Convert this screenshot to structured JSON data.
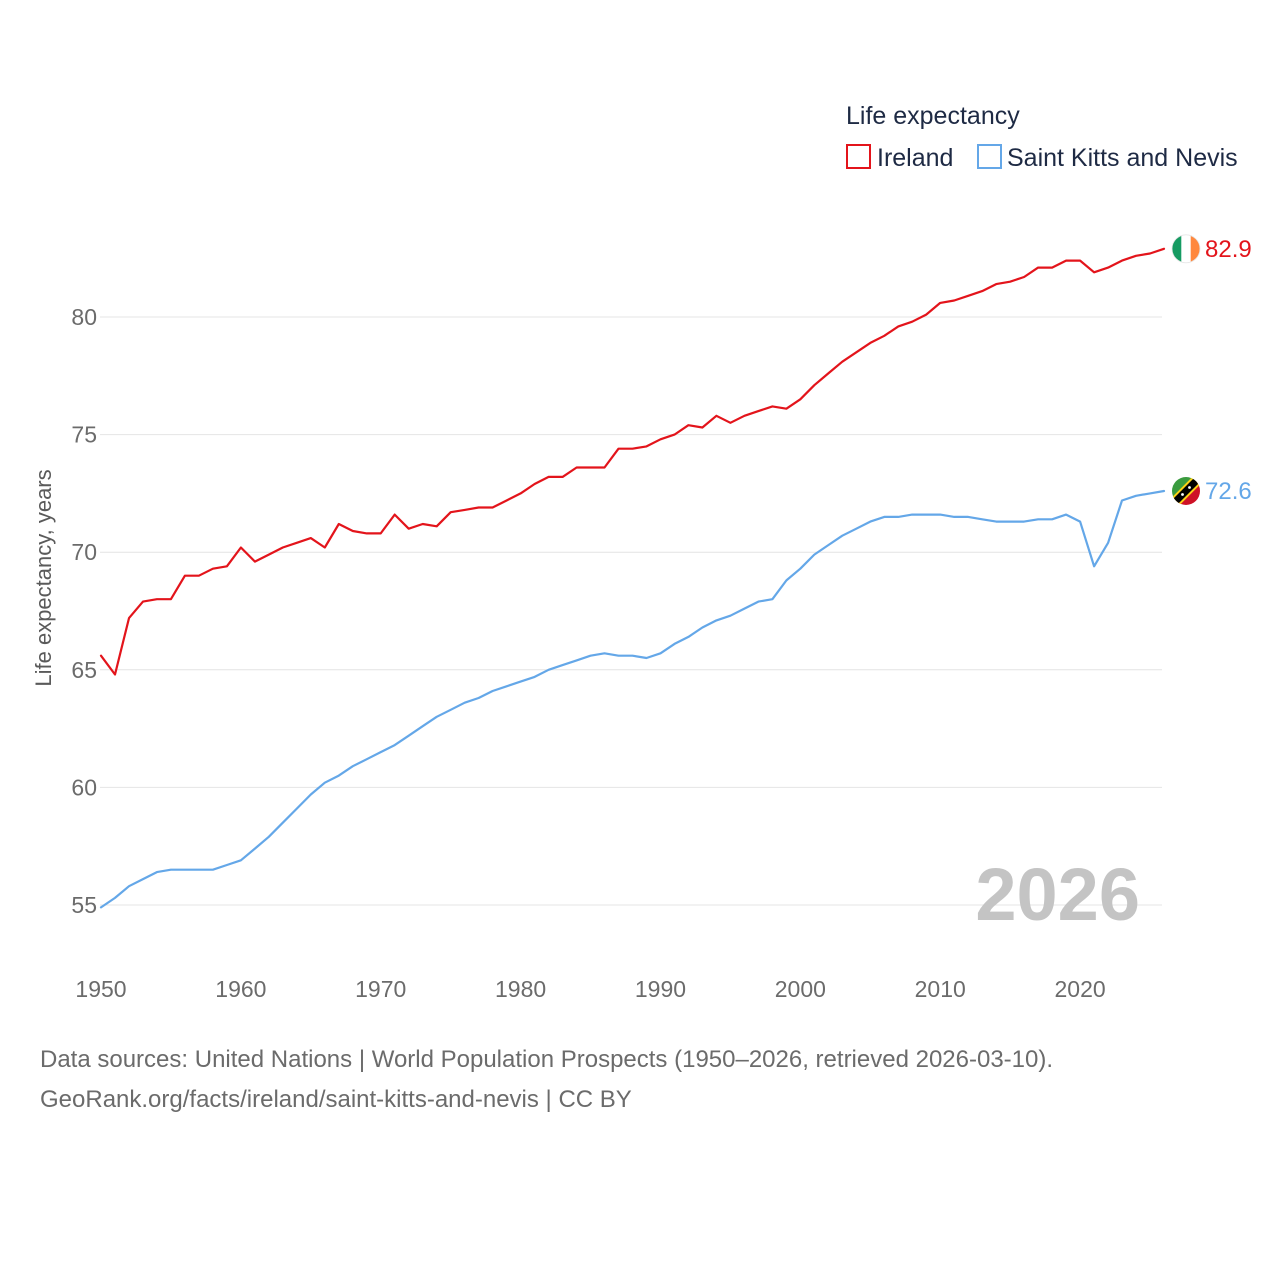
{
  "chart_data": {
    "type": "line",
    "title": "",
    "legend_title": "Life expectancy",
    "ylabel": "Life expectancy, years",
    "xlabel": "",
    "xlim": [
      1950,
      2026
    ],
    "ylim": [
      54,
      84
    ],
    "x_ticks": [
      1950,
      1960,
      1970,
      1980,
      1990,
      2000,
      2010,
      2020
    ],
    "y_ticks": [
      55,
      60,
      65,
      70,
      75,
      80
    ],
    "year_label": "2026",
    "x": [
      1950,
      1951,
      1952,
      1953,
      1954,
      1955,
      1956,
      1957,
      1958,
      1959,
      1960,
      1961,
      1962,
      1963,
      1964,
      1965,
      1966,
      1967,
      1968,
      1969,
      1970,
      1971,
      1972,
      1973,
      1974,
      1975,
      1976,
      1977,
      1978,
      1979,
      1980,
      1981,
      1982,
      1983,
      1984,
      1985,
      1986,
      1987,
      1988,
      1989,
      1990,
      1991,
      1992,
      1993,
      1994,
      1995,
      1996,
      1997,
      1998,
      1999,
      2000,
      2001,
      2002,
      2003,
      2004,
      2005,
      2006,
      2007,
      2008,
      2009,
      2010,
      2011,
      2012,
      2013,
      2014,
      2015,
      2016,
      2017,
      2018,
      2019,
      2020,
      2021,
      2022,
      2023,
      2024,
      2025,
      2026
    ],
    "series": [
      {
        "name": "Ireland",
        "color": "#e3141b",
        "end_label": "82.9",
        "values": [
          65.6,
          64.8,
          67.2,
          67.9,
          68.0,
          68.0,
          69.0,
          69.0,
          69.3,
          69.4,
          70.2,
          69.6,
          69.9,
          70.2,
          70.4,
          70.6,
          70.2,
          71.2,
          70.9,
          70.8,
          70.8,
          71.6,
          71.0,
          71.2,
          71.1,
          71.7,
          71.8,
          71.9,
          71.9,
          72.2,
          72.5,
          72.9,
          73.2,
          73.2,
          73.6,
          73.6,
          73.6,
          74.4,
          74.4,
          74.5,
          74.8,
          75.0,
          75.4,
          75.3,
          75.8,
          75.5,
          75.8,
          76.0,
          76.2,
          76.1,
          76.5,
          77.1,
          77.6,
          78.1,
          78.5,
          78.9,
          79.2,
          79.6,
          79.8,
          80.1,
          80.6,
          80.7,
          80.9,
          81.1,
          81.4,
          81.5,
          81.7,
          82.1,
          82.1,
          82.4,
          82.4,
          81.9,
          82.1,
          82.4,
          82.6,
          82.7,
          82.9
        ]
      },
      {
        "name": "Saint Kitts and Nevis",
        "color": "#64a7e8",
        "end_label": "72.6",
        "values": [
          54.9,
          55.3,
          55.8,
          56.1,
          56.4,
          56.5,
          56.5,
          56.5,
          56.5,
          56.7,
          56.9,
          57.4,
          57.9,
          58.5,
          59.1,
          59.7,
          60.2,
          60.5,
          60.9,
          61.2,
          61.5,
          61.8,
          62.2,
          62.6,
          63.0,
          63.3,
          63.6,
          63.8,
          64.1,
          64.3,
          64.5,
          64.7,
          65.0,
          65.2,
          65.4,
          65.6,
          65.7,
          65.6,
          65.6,
          65.5,
          65.7,
          66.1,
          66.4,
          66.8,
          67.1,
          67.3,
          67.6,
          67.9,
          68.0,
          68.8,
          69.3,
          69.9,
          70.3,
          70.7,
          71.0,
          71.3,
          71.5,
          71.5,
          71.6,
          71.6,
          71.6,
          71.5,
          71.5,
          71.4,
          71.3,
          71.3,
          71.3,
          71.4,
          71.4,
          71.6,
          71.3,
          69.4,
          70.4,
          72.2,
          72.4,
          72.5,
          72.6
        ]
      }
    ]
  },
  "footer": {
    "sources": "Data sources: United Nations | World Population Prospects (1950–2026, retrieved 2026-03-10).",
    "credit": "GeoRank.org/facts/ireland/saint-kitts-and-nevis | CC BY"
  }
}
